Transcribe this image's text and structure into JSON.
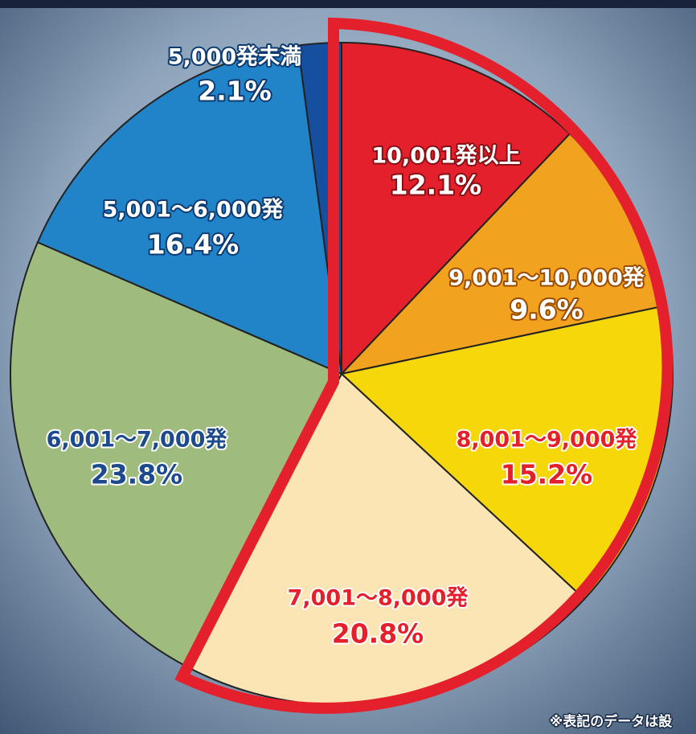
{
  "chart_data": {
    "type": "pie",
    "categories": [
      "10,001発以上",
      "9,001～10,000発",
      "8,001～9,000発",
      "7,001～8,000発",
      "6,001～7,000発",
      "5,001～6,000発",
      "5,000発未満"
    ],
    "values": [
      12.1,
      9.6,
      15.2,
      20.8,
      23.8,
      16.4,
      2.1
    ],
    "value_labels": [
      "12.1%",
      "9.6%",
      "15.2%",
      "20.8%",
      "23.8%",
      "16.4%",
      "2.1%"
    ],
    "colors": [
      "#e3202b",
      "#f1a21e",
      "#f6d70a",
      "#fbe5b4",
      "#a0bb7e",
      "#2184c9",
      "#154f9e"
    ],
    "note": "※表記のデータは設"
  }
}
